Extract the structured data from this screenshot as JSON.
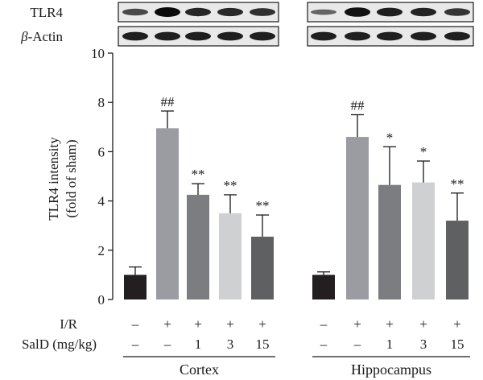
{
  "blot": {
    "rows": [
      {
        "label_main": "TLR4",
        "label_prefix": "",
        "intensities": [
          0.55,
          1.0,
          0.8,
          0.78,
          0.72,
          0.35,
          0.95,
          0.85,
          0.82,
          0.7
        ]
      },
      {
        "label_main": "-Actin",
        "label_prefix": "β",
        "intensities": [
          0.85,
          0.85,
          0.85,
          0.85,
          0.85,
          0.85,
          0.85,
          0.85,
          0.85,
          0.85
        ]
      }
    ]
  },
  "chart_data": {
    "type": "bar",
    "ylabel_line1": "TLR4 intensity",
    "ylabel_line2": "(fold of sham)",
    "ylim": [
      0,
      10
    ],
    "yticks": [
      "0",
      "2",
      "4",
      "6",
      "8",
      "10"
    ],
    "groups": [
      {
        "name": "Cortex",
        "bars": [
          {
            "value": 1.0,
            "error": 0.32,
            "sig": "",
            "ir": "–",
            "sald": "–",
            "color": "#231f20"
          },
          {
            "value": 6.95,
            "error": 0.7,
            "sig": "##",
            "ir": "+",
            "sald": "–",
            "color": "#9a9ca1"
          },
          {
            "value": 4.25,
            "error": 0.45,
            "sig": "**",
            "ir": "+",
            "sald": "1",
            "color": "#7b7d81"
          },
          {
            "value": 3.5,
            "error": 0.75,
            "sig": "**",
            "ir": "+",
            "sald": "3",
            "color": "#cfd0d2"
          },
          {
            "value": 2.55,
            "error": 0.88,
            "sig": "**",
            "ir": "+",
            "sald": "15",
            "color": "#5f6062"
          }
        ]
      },
      {
        "name": "Hippocampus",
        "bars": [
          {
            "value": 1.0,
            "error": 0.12,
            "sig": "",
            "ir": "–",
            "sald": "–",
            "color": "#231f20"
          },
          {
            "value": 6.6,
            "error": 0.9,
            "sig": "##",
            "ir": "+",
            "sald": "–",
            "color": "#9a9ca1"
          },
          {
            "value": 4.65,
            "error": 1.55,
            "sig": "*",
            "ir": "+",
            "sald": "1",
            "color": "#7b7d81"
          },
          {
            "value": 4.75,
            "error": 0.87,
            "sig": "*",
            "ir": "+",
            "sald": "3",
            "color": "#cfd0d2"
          },
          {
            "value": 3.2,
            "error": 1.12,
            "sig": "**",
            "ir": "+",
            "sald": "15",
            "color": "#5f6062"
          }
        ]
      }
    ],
    "row_labels": {
      "ir": "I/R",
      "sald": "SalD (mg/kg)"
    }
  }
}
